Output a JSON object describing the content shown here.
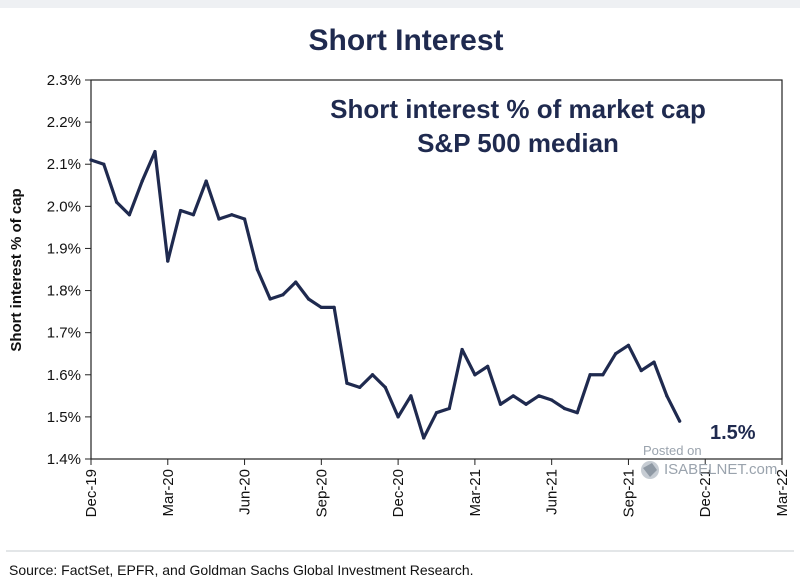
{
  "chart_data": {
    "type": "line",
    "title": "Short Interest",
    "inner_title_line1": "Short interest % of market cap",
    "inner_title_line2": "S&P 500 median",
    "ylabel": "Short interest % of cap",
    "xlabel": "",
    "ylim": [
      1.4,
      2.3
    ],
    "y_ticks": [
      1.4,
      1.5,
      1.6,
      1.7,
      1.8,
      1.9,
      2.0,
      2.1,
      2.2,
      2.3
    ],
    "y_tick_labels": [
      "1.4%",
      "1.5%",
      "1.6%",
      "1.7%",
      "1.8%",
      "1.9%",
      "2.0%",
      "2.1%",
      "2.2%",
      "2.3%"
    ],
    "xlim": [
      0,
      27
    ],
    "x_ticks": [
      0,
      3,
      6,
      9,
      12,
      15,
      18,
      21,
      24,
      27
    ],
    "x_tick_labels": [
      "Dec-19",
      "Mar-20",
      "Jun-20",
      "Sep-20",
      "Dec-20",
      "Mar-21",
      "Jun-21",
      "Sep-21",
      "Dec-21",
      "Mar-22"
    ],
    "grid": false,
    "series": [
      {
        "name": "S&P 500 median",
        "color": "#1f2a4f",
        "x": [
          0,
          0.5,
          1,
          1.5,
          2,
          2.5,
          3,
          3.5,
          4,
          4.5,
          5,
          5.5,
          6,
          6.5,
          7,
          7.5,
          8,
          8.5,
          9,
          9.5,
          10,
          10.5,
          11,
          11.5,
          12,
          12.5,
          13,
          13.5,
          14,
          14.5,
          15,
          15.5,
          16,
          16.5,
          17,
          17.5,
          18,
          18.5,
          19,
          19.5,
          20,
          20.5,
          21,
          21.5,
          22,
          22.5,
          23
        ],
        "values": [
          2.11,
          2.1,
          2.01,
          1.98,
          2.06,
          2.13,
          1.87,
          1.99,
          1.98,
          2.06,
          1.97,
          1.98,
          1.97,
          1.85,
          1.78,
          1.79,
          1.82,
          1.78,
          1.76,
          1.76,
          1.58,
          1.57,
          1.6,
          1.57,
          1.5,
          1.55,
          1.45,
          1.51,
          1.52,
          1.66,
          1.6,
          1.62,
          1.53,
          1.55,
          1.53,
          1.55,
          1.54,
          1.52,
          1.51,
          1.6,
          1.6,
          1.65,
          1.67,
          1.61,
          1.63,
          1.55,
          1.49
        ]
      }
    ],
    "end_label": "1.5%",
    "source": "Source: FactSet, EPFR, and Goldman Sachs Global Investment Research.",
    "watermark_top": "Posted on",
    "watermark_bottom": "ISABELNET.com"
  },
  "colors": {
    "line": "#1f2a4f",
    "text": "#1f2a4f",
    "axis": "#222222",
    "background": "#ffffff"
  }
}
